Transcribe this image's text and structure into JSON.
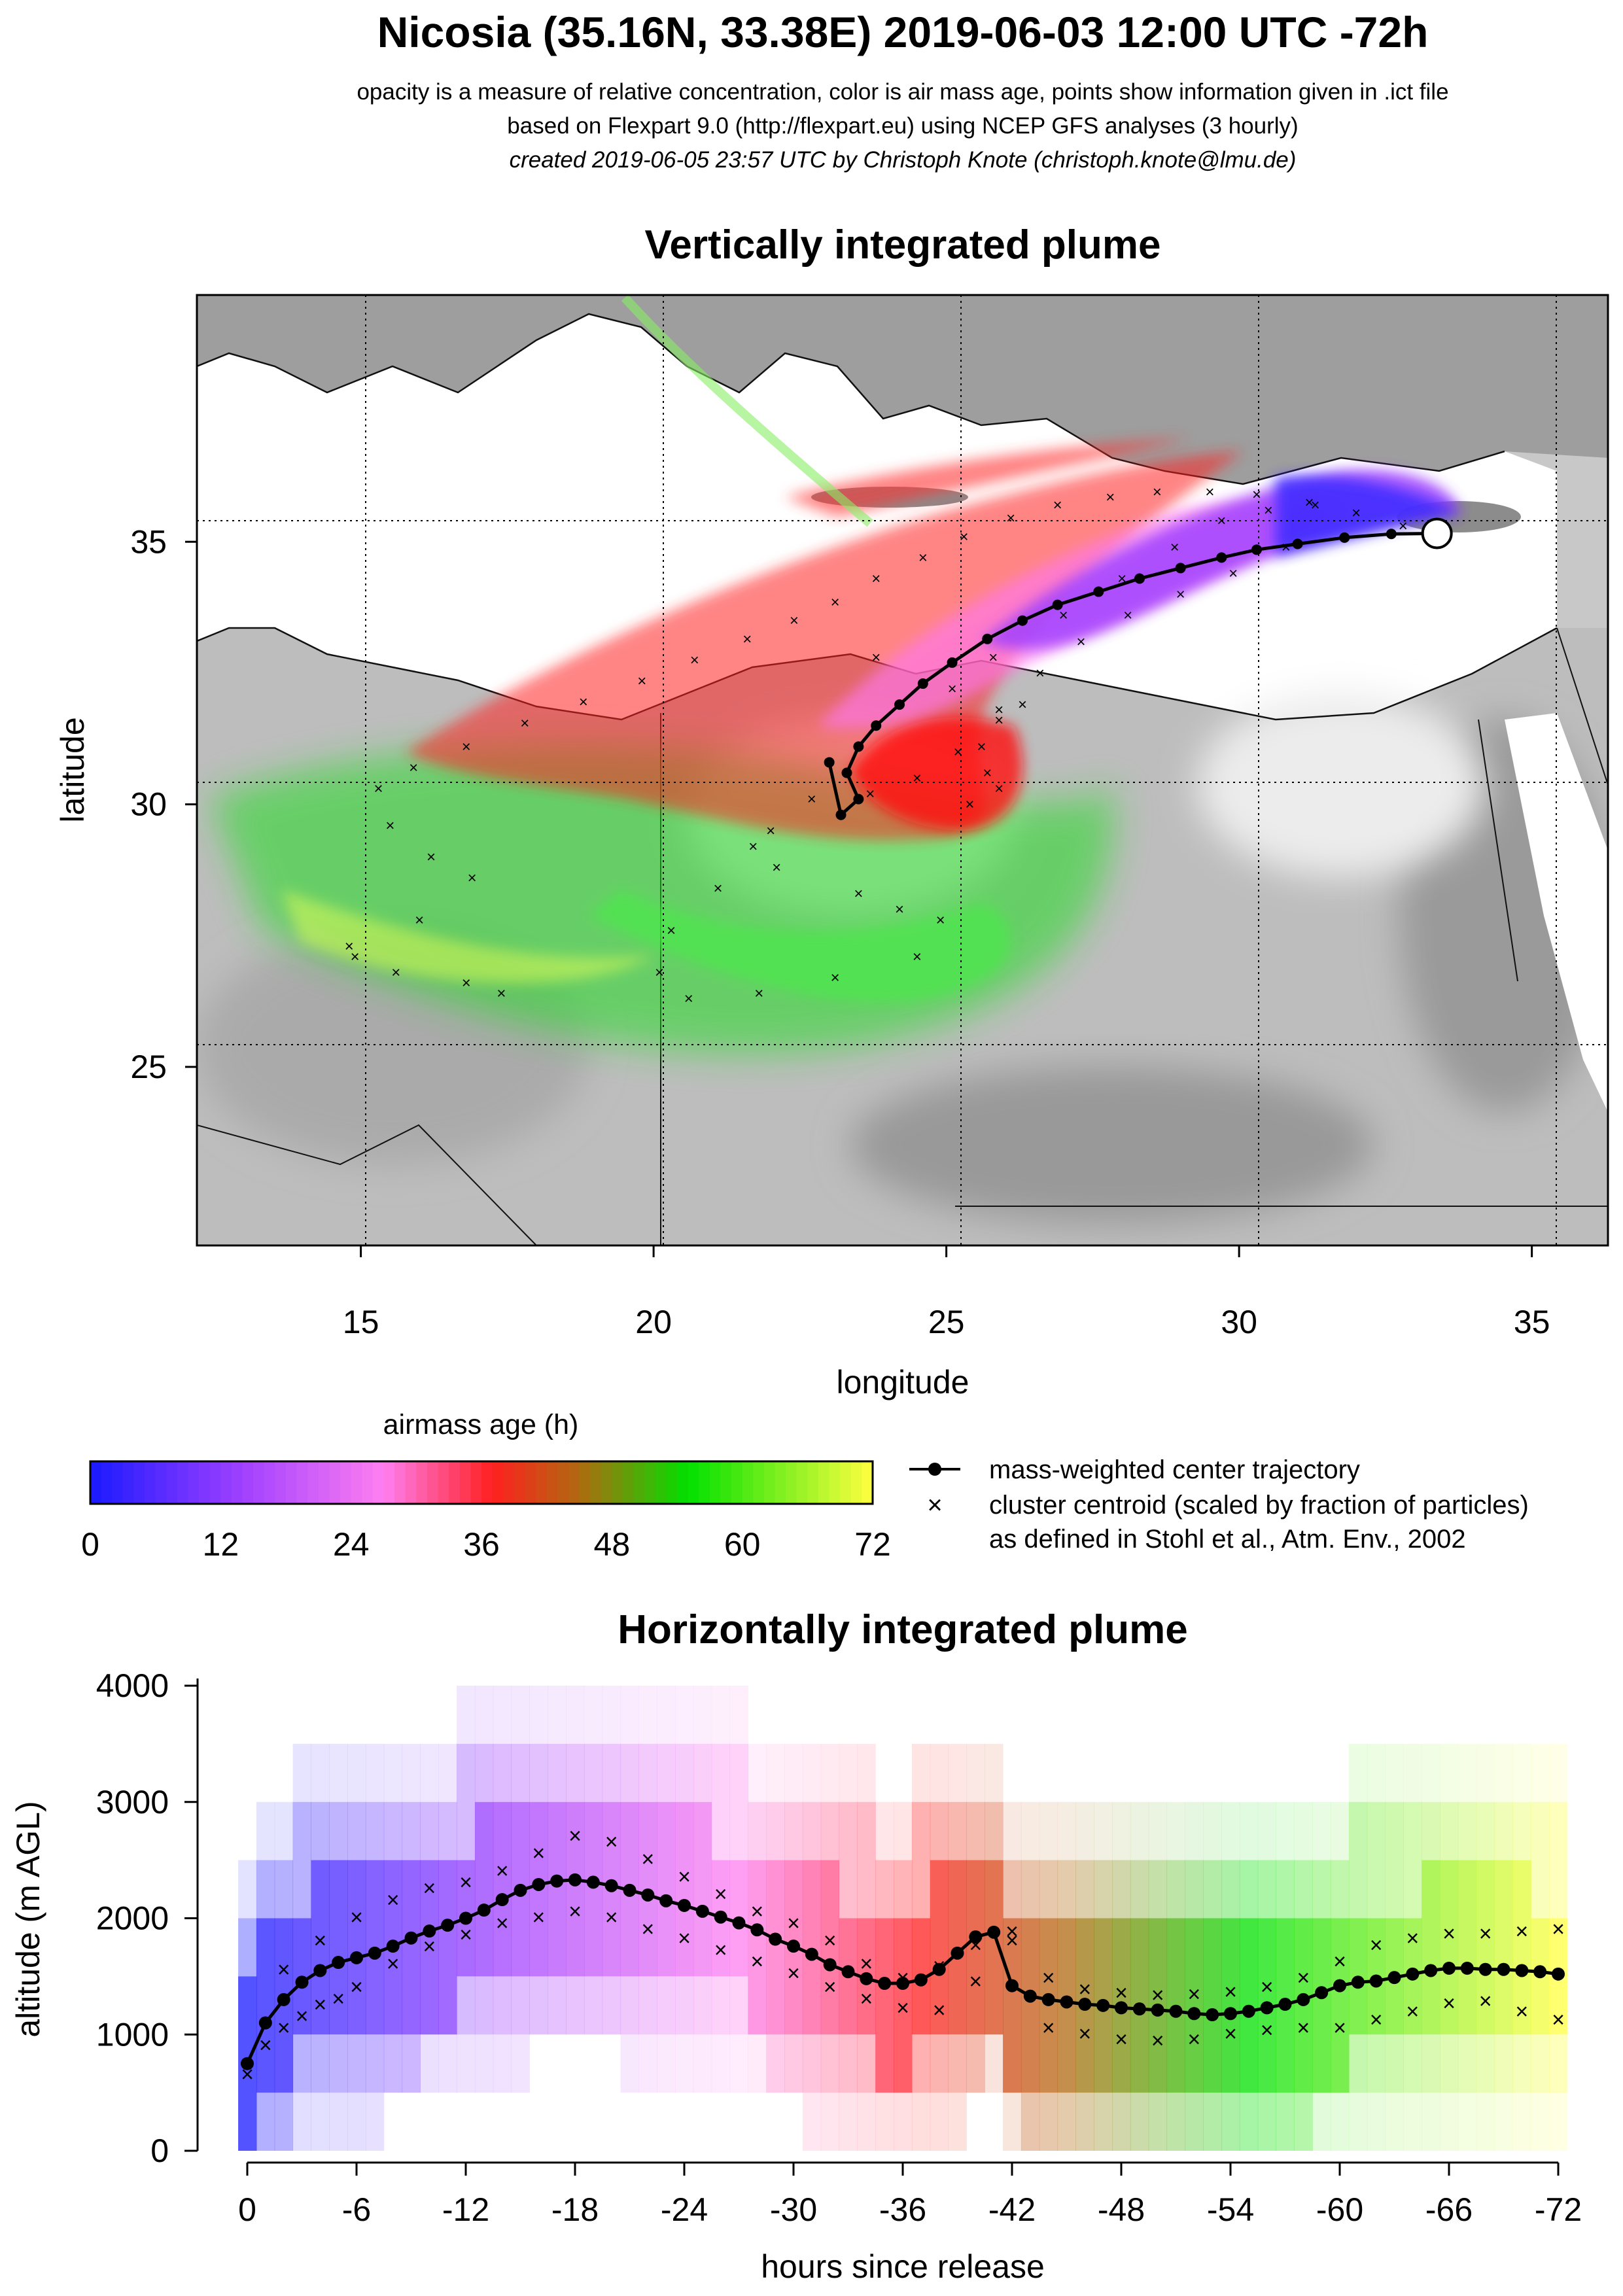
{
  "header": {
    "title": "Nicosia (35.16N, 33.38E) 2019-06-03 12:00 UTC -72h",
    "line1": "opacity is a measure of relative concentration, color is air mass age, points show information given in .ict file",
    "line2": "based on Flexpart 9.0 (http://flexpart.eu) using NCEP GFS analyses (3 hourly)",
    "line3": "created 2019-06-05 23:57 UTC by Christoph Knote (christoph.knote@lmu.de)"
  },
  "colors": {
    "age_ramp": [
      "#1a1aff",
      "#a040ff",
      "#ff7ff0",
      "#ff2020",
      "#00e000",
      "#ffff40"
    ],
    "center_trajectory": "#000000",
    "land_gray": "#a8a8a8",
    "sea_light": "#dcdcdc"
  },
  "chart_data": [
    {
      "type": "map",
      "title": "Vertically integrated plume",
      "xlabel": "longitude",
      "ylabel": "latitude",
      "xlim": [
        12.2,
        36.3
      ],
      "ylim": [
        21.6,
        39.7
      ],
      "xticks": [
        "15",
        "20",
        "25",
        "30",
        "35"
      ],
      "yticks": [
        "25",
        "30",
        "35"
      ],
      "grid": "dotted at 20, 25, 30, 35 E and 25, 30, 35 N",
      "release_site": {
        "lon": 33.38,
        "lat": 35.16
      },
      "center_trajectory": {
        "lon": [
          33.38,
          32.6,
          31.8,
          31.0,
          30.3,
          29.7,
          29.0,
          28.3,
          27.6,
          26.9,
          26.3,
          25.7,
          25.1,
          24.6,
          24.2,
          23.8,
          23.5,
          23.3,
          23.5,
          23.2,
          23.0
        ],
        "lat": [
          35.16,
          35.15,
          35.08,
          34.96,
          34.85,
          34.7,
          34.5,
          34.3,
          34.05,
          33.8,
          33.5,
          33.15,
          32.7,
          32.3,
          31.9,
          31.5,
          31.1,
          30.6,
          30.1,
          29.8,
          30.8
        ]
      },
      "cluster_centroids": {
        "lon": [
          32.8,
          32.0,
          31.2,
          30.3,
          29.5,
          28.6,
          27.8,
          26.9,
          26.1,
          25.3,
          24.6,
          23.8,
          23.1,
          22.4,
          21.6,
          20.7,
          19.8,
          18.8,
          17.8,
          16.8,
          15.9,
          15.3,
          15.5,
          16.2,
          16.9,
          16.0,
          14.8,
          14.9,
          15.6,
          16.8,
          17.4,
          25.7,
          25.4,
          25.9,
          25.6,
          21.7,
          22.1,
          23.5,
          24.2,
          24.9,
          24.5,
          23.1,
          21.8,
          20.6,
          20.1,
          20.3,
          21.1,
          22.0,
          23.8,
          25.1,
          25.9,
          26.3,
          25.8,
          27.0,
          28.0,
          28.9,
          29.7,
          30.5,
          31.3,
          30.8,
          29.9,
          29.0,
          28.1,
          27.3,
          26.6,
          25.9,
          25.2,
          24.5,
          23.7,
          22.7
        ],
        "lat": [
          35.3,
          35.55,
          35.75,
          35.9,
          35.95,
          35.95,
          35.85,
          35.7,
          35.45,
          35.1,
          34.7,
          34.3,
          33.85,
          33.5,
          33.15,
          32.75,
          32.35,
          31.95,
          31.55,
          31.1,
          30.7,
          30.3,
          29.6,
          29.0,
          28.6,
          27.8,
          27.3,
          27.1,
          26.8,
          26.6,
          26.4,
          30.6,
          30.0,
          30.3,
          31.1,
          29.2,
          28.8,
          28.3,
          28.0,
          27.8,
          27.1,
          26.7,
          26.4,
          26.3,
          26.8,
          27.6,
          28.4,
          29.5,
          32.8,
          32.2,
          31.6,
          31.9,
          32.8,
          33.6,
          34.3,
          34.9,
          35.4,
          35.6,
          35.7,
          34.9,
          34.4,
          34.0,
          33.6,
          33.1,
          32.5,
          31.8,
          31.0,
          30.5,
          30.2,
          30.1
        ]
      }
    },
    {
      "type": "heatmap",
      "title": "airmass age (h)",
      "categories": [
        "0",
        "12",
        "24",
        "36",
        "48",
        "60",
        "72"
      ],
      "range": [
        0,
        72
      ]
    },
    {
      "type": "line",
      "title": "Horizontally integrated plume",
      "xlabel": "hours since release",
      "ylabel": "altitude (m AGL)",
      "x_tick_labels": [
        "0",
        "-6",
        "-12",
        "-18",
        "-24",
        "-30",
        "-36",
        "-42",
        "-48",
        "-54",
        "-60",
        "-66",
        "-72"
      ],
      "y_tick_labels": [
        "0",
        "1000",
        "2000",
        "3000",
        "4000"
      ],
      "xlim": [
        0,
        -72
      ],
      "ylim": [
        0,
        4000
      ],
      "series": [
        {
          "name": "mass-weighted center trajectory",
          "x": [
            0,
            -1,
            -2,
            -3,
            -4,
            -5,
            -6,
            -7,
            -8,
            -9,
            -10,
            -11,
            -12,
            -13,
            -14,
            -15,
            -16,
            -17,
            -18,
            -19,
            -20,
            -21,
            -22,
            -23,
            -24,
            -25,
            -26,
            -27,
            -28,
            -29,
            -30,
            -31,
            -32,
            -33,
            -34,
            -35,
            -36,
            -37,
            -38,
            -39,
            -40,
            -41,
            -42,
            -43,
            -44,
            -45,
            -46,
            -47,
            -48,
            -49,
            -50,
            -51,
            -52,
            -53,
            -54,
            -55,
            -56,
            -57,
            -58,
            -59,
            -60,
            -61,
            -62,
            -63,
            -64,
            -65,
            -66,
            -67,
            -68,
            -69,
            -70,
            -71,
            -72
          ],
          "y": [
            750,
            1100,
            1300,
            1450,
            1550,
            1620,
            1660,
            1700,
            1760,
            1830,
            1890,
            1940,
            2000,
            2070,
            2160,
            2240,
            2290,
            2320,
            2330,
            2310,
            2280,
            2240,
            2200,
            2150,
            2110,
            2060,
            2010,
            1960,
            1900,
            1820,
            1760,
            1690,
            1600,
            1540,
            1480,
            1440,
            1440,
            1470,
            1560,
            1700,
            1840,
            1880,
            1420,
            1330,
            1300,
            1280,
            1260,
            1250,
            1230,
            1220,
            1210,
            1200,
            1180,
            1170,
            1180,
            1200,
            1230,
            1260,
            1300,
            1360,
            1420,
            1450,
            1460,
            1490,
            1520,
            1550,
            1570,
            1570,
            1560,
            1560,
            1550,
            1540,
            1520
          ]
        },
        {
          "name": "cluster centroid",
          "x": [
            0,
            -1,
            -2,
            -3,
            -4,
            -5,
            -6,
            -8,
            -10,
            -12,
            -14,
            -16,
            -18,
            -20,
            -22,
            -24,
            -26,
            -28,
            -30,
            -32,
            -34,
            -36,
            -38,
            -40,
            -42,
            -44,
            -46,
            -48,
            -50,
            -52,
            -54,
            -56,
            -58,
            -60,
            -62,
            -64,
            -66,
            -68,
            -70,
            -72,
            -2,
            -4,
            -6,
            -8,
            -10,
            -12,
            -14,
            -16,
            -18,
            -20,
            -22,
            -24,
            -26,
            -28,
            -30,
            -32,
            -34,
            -36,
            -38,
            -40,
            -42,
            -44,
            -46,
            -48,
            -50,
            -52,
            -54,
            -56,
            -58,
            -60,
            -62,
            -64,
            -66,
            -68,
            -70,
            -72
          ],
          "y": [
            650,
            900,
            1050,
            1150,
            1250,
            1300,
            1400,
            1600,
            1750,
            1850,
            1950,
            2000,
            2050,
            2000,
            1900,
            1820,
            1720,
            1620,
            1520,
            1400,
            1300,
            1220,
            1200,
            1450,
            1800,
            1050,
            1000,
            950,
            940,
            950,
            1000,
            1030,
            1050,
            1050,
            1120,
            1190,
            1260,
            1280,
            1190,
            1120,
            1550,
            1800,
            2000,
            2150,
            2250,
            2300,
            2400,
            2550,
            2700,
            2650,
            2500,
            2350,
            2200,
            2050,
            1950,
            1800,
            1600,
            1480,
            1580,
            1760,
            1880,
            1480,
            1380,
            1350,
            1330,
            1340,
            1360,
            1400,
            1480,
            1620,
            1760,
            1820,
            1860,
            1860,
            1880,
            1900
          ]
        }
      ]
    }
  ],
  "legend": {
    "center_label": "mass-weighted center trajectory",
    "centroid_label": "cluster centroid (scaled by fraction of particles)",
    "centroid_label2": "as defined in Stohl et al., Atm. Env., 2002"
  }
}
